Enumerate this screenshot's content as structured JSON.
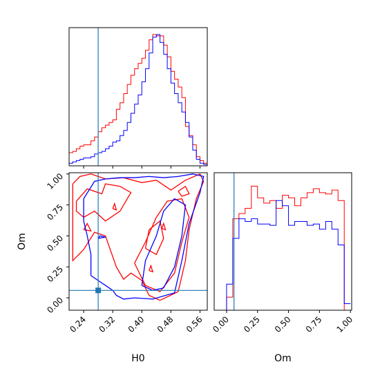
{
  "chart_data": [
    {
      "type": "histogram",
      "panel": "H0 marginal",
      "xlim": [
        0.2,
        0.58
      ],
      "truth": 0.28,
      "bin_edges": [
        0.2,
        0.21,
        0.22,
        0.23,
        0.24,
        0.25,
        0.26,
        0.27,
        0.28,
        0.29,
        0.3,
        0.31,
        0.32,
        0.33,
        0.34,
        0.35,
        0.36,
        0.37,
        0.38,
        0.39,
        0.4,
        0.41,
        0.42,
        0.43,
        0.44,
        0.45,
        0.46,
        0.47,
        0.48,
        0.49,
        0.5,
        0.51,
        0.52,
        0.53,
        0.54,
        0.55,
        0.56,
        0.57,
        0.58
      ],
      "series": [
        {
          "color": "#ff0000",
          "values": [
            0.1,
            0.11,
            0.13,
            0.15,
            0.16,
            0.16,
            0.19,
            0.22,
            0.26,
            0.29,
            0.31,
            0.33,
            0.35,
            0.43,
            0.48,
            0.55,
            0.62,
            0.69,
            0.74,
            0.78,
            0.82,
            0.88,
            0.96,
            1.0,
            0.99,
            0.99,
            0.92,
            0.83,
            0.72,
            0.66,
            0.6,
            0.52,
            0.3,
            0.23,
            0.16,
            0.07,
            0.04,
            0.02
          ]
        },
        {
          "color": "#0000ff",
          "values": [
            0.02,
            0.03,
            0.04,
            0.05,
            0.06,
            0.06,
            0.07,
            0.09,
            0.1,
            0.11,
            0.13,
            0.15,
            0.18,
            0.19,
            0.23,
            0.27,
            0.33,
            0.4,
            0.47,
            0.54,
            0.64,
            0.74,
            0.86,
            0.98,
            1.0,
            0.94,
            0.85,
            0.74,
            0.63,
            0.55,
            0.48,
            0.41,
            0.33,
            0.22,
            0.12,
            0.05,
            0.02,
            0.01
          ]
        }
      ]
    },
    {
      "type": "contour",
      "panel": "H0 vs Om",
      "xlabel": "H0",
      "ylabel": "Om",
      "xlim": [
        0.2,
        0.58
      ],
      "ylim": [
        -0.1,
        1.01
      ],
      "xticks": [
        "0.24",
        "0.32",
        "0.40",
        "0.48",
        "0.56"
      ],
      "yticks": [
        "0.00",
        "0.25",
        "0.50",
        "0.75",
        "1.00"
      ],
      "truth": {
        "H0": 0.28,
        "Om": 0.06
      },
      "series": [
        {
          "color": "#ff0000",
          "contours": [
            [
              [
                0.21,
                0.92
              ],
              [
                0.23,
                0.98
              ],
              [
                0.26,
                1.0
              ],
              [
                0.3,
                0.96
              ],
              [
                0.35,
                0.97
              ],
              [
                0.4,
                0.93
              ],
              [
                0.44,
                0.95
              ],
              [
                0.48,
                0.87
              ],
              [
                0.52,
                0.95
              ],
              [
                0.56,
                1.0
              ],
              [
                0.57,
                0.94
              ],
              [
                0.55,
                0.8
              ],
              [
                0.53,
                0.55
              ],
              [
                0.52,
                0.3
              ],
              [
                0.5,
                0.05
              ],
              [
                0.45,
                -0.02
              ],
              [
                0.42,
                0.02
              ],
              [
                0.4,
                0.14
              ],
              [
                0.37,
                0.2
              ],
              [
                0.35,
                0.15
              ],
              [
                0.33,
                0.25
              ],
              [
                0.3,
                0.5
              ],
              [
                0.27,
                0.53
              ],
              [
                0.24,
                0.39
              ],
              [
                0.21,
                0.3
              ],
              [
                0.21,
                0.6
              ],
              [
                0.21,
                0.92
              ]
            ],
            [
              [
                0.22,
                0.78
              ],
              [
                0.25,
                0.88
              ],
              [
                0.29,
                0.84
              ],
              [
                0.3,
                0.92
              ],
              [
                0.34,
                0.9
              ],
              [
                0.37,
                0.85
              ],
              [
                0.34,
                0.7
              ],
              [
                0.3,
                0.62
              ],
              [
                0.27,
                0.7
              ],
              [
                0.24,
                0.65
              ],
              [
                0.22,
                0.7
              ],
              [
                0.22,
                0.78
              ]
            ],
            [
              [
                0.38,
                0.28
              ],
              [
                0.41,
                0.45
              ],
              [
                0.44,
                0.65
              ],
              [
                0.47,
                0.78
              ],
              [
                0.51,
                0.8
              ],
              [
                0.53,
                0.65
              ],
              [
                0.51,
                0.45
              ],
              [
                0.49,
                0.2
              ],
              [
                0.45,
                0.05
              ],
              [
                0.41,
                0.1
              ],
              [
                0.38,
                0.28
              ]
            ],
            [
              [
                0.41,
                0.4
              ],
              [
                0.42,
                0.55
              ],
              [
                0.45,
                0.62
              ],
              [
                0.46,
                0.48
              ],
              [
                0.44,
                0.35
              ],
              [
                0.41,
                0.4
              ]
            ],
            [
              [
                0.5,
                0.86
              ],
              [
                0.52,
                0.9
              ],
              [
                0.53,
                0.84
              ],
              [
                0.51,
                0.82
              ],
              [
                0.5,
                0.86
              ]
            ],
            [
              [
                0.24,
                0.55
              ],
              [
                0.25,
                0.6
              ],
              [
                0.26,
                0.54
              ],
              [
                0.24,
                0.55
              ]
            ],
            [
              [
                0.32,
                0.72
              ],
              [
                0.325,
                0.76
              ],
              [
                0.33,
                0.71
              ],
              [
                0.32,
                0.72
              ]
            ],
            [
              [
                0.42,
                0.22
              ],
              [
                0.425,
                0.26
              ],
              [
                0.43,
                0.21
              ],
              [
                0.42,
                0.22
              ]
            ],
            [
              [
                0.455,
                0.56
              ],
              [
                0.46,
                0.6
              ],
              [
                0.465,
                0.55
              ],
              [
                0.455,
                0.56
              ]
            ]
          ]
        },
        {
          "color": "#0000ff",
          "contours": [
            [
              [
                0.26,
                0.18
              ],
              [
                0.26,
                0.35
              ],
              [
                0.25,
                0.5
              ],
              [
                0.24,
                0.62
              ],
              [
                0.24,
                0.8
              ],
              [
                0.27,
                0.94
              ],
              [
                0.3,
                0.96
              ],
              [
                0.34,
                0.97
              ],
              [
                0.38,
                0.97
              ],
              [
                0.42,
                0.98
              ],
              [
                0.46,
                0.97
              ],
              [
                0.5,
                0.98
              ],
              [
                0.54,
                1.0
              ],
              [
                0.57,
                0.98
              ],
              [
                0.56,
                0.85
              ],
              [
                0.53,
                0.6
              ],
              [
                0.51,
                0.3
              ],
              [
                0.49,
                0.04
              ],
              [
                0.43,
                -0.01
              ],
              [
                0.38,
                0.0
              ],
              [
                0.35,
                -0.01
              ],
              [
                0.33,
                0.02
              ],
              [
                0.32,
                0.06
              ],
              [
                0.3,
                0.1
              ],
              [
                0.28,
                0.14
              ],
              [
                0.26,
                0.18
              ]
            ],
            [
              [
                0.4,
                0.1
              ],
              [
                0.41,
                0.3
              ],
              [
                0.44,
                0.5
              ],
              [
                0.46,
                0.7
              ],
              [
                0.49,
                0.8
              ],
              [
                0.52,
                0.75
              ],
              [
                0.51,
                0.5
              ],
              [
                0.49,
                0.25
              ],
              [
                0.46,
                0.08
              ],
              [
                0.43,
                0.06
              ],
              [
                0.4,
                0.1
              ]
            ],
            [
              [
                0.28,
                0.48
              ],
              [
                0.285,
                0.5
              ],
              [
                0.3,
                0.49
              ],
              [
                0.28,
                0.48
              ]
            ]
          ]
        }
      ]
    },
    {
      "type": "histogram",
      "panel": "Om marginal",
      "xlabel": "Om",
      "xlim": [
        -0.1,
        1.01
      ],
      "xticks": [
        "0.00",
        "0.25",
        "0.50",
        "0.75",
        "1.00"
      ],
      "truth": 0.06,
      "bin_edges": [
        -0.1,
        -0.05,
        0.0,
        0.05,
        0.1,
        0.15,
        0.2,
        0.25,
        0.3,
        0.35,
        0.4,
        0.45,
        0.5,
        0.55,
        0.6,
        0.65,
        0.7,
        0.75,
        0.8,
        0.85,
        0.9,
        0.95,
        1.0
      ],
      "series": [
        {
          "color": "#ff0000",
          "values": [
            0.0,
            0.0,
            0.1,
            0.7,
            0.74,
            0.78,
            0.95,
            0.86,
            0.82,
            0.84,
            0.78,
            0.88,
            0.86,
            0.8,
            0.86,
            0.9,
            0.93,
            0.9,
            0.89,
            0.92,
            0.84,
            0.0
          ]
        },
        {
          "color": "#0000ff",
          "values": [
            0.0,
            0.0,
            0.2,
            0.55,
            0.7,
            0.68,
            0.7,
            0.66,
            0.66,
            0.65,
            0.84,
            0.8,
            0.65,
            0.68,
            0.68,
            0.65,
            0.66,
            0.62,
            0.68,
            0.62,
            0.5,
            0.05
          ]
        }
      ]
    }
  ]
}
